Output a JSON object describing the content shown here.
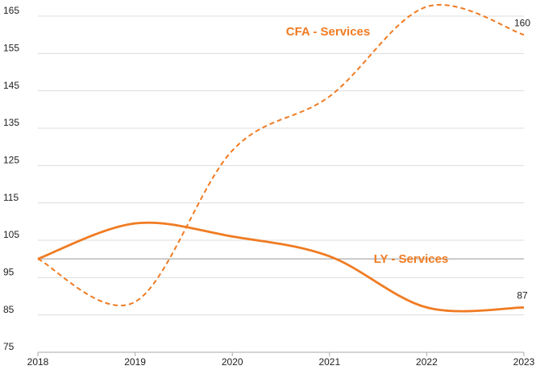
{
  "chart_data": {
    "type": "line",
    "x": [
      2018,
      2019,
      2020,
      2021,
      2022,
      2023
    ],
    "series": [
      {
        "name": "CFA - Services",
        "color": "#f07b22",
        "dashed": true,
        "values": [
          100,
          88.5,
          129,
          143.5,
          167.5,
          160
        ]
      },
      {
        "name": "LY - Services",
        "color": "#f07b22",
        "dashed": false,
        "values": [
          100,
          109.5,
          106,
          100.7,
          87,
          87
        ]
      }
    ],
    "xlim": [
      2018,
      2023
    ],
    "xticks": [
      2018,
      2019,
      2020,
      2021,
      2022,
      2023
    ],
    "ylim": [
      75,
      165
    ],
    "yticks": [
      75,
      85,
      95,
      105,
      115,
      125,
      135,
      145,
      155,
      165
    ],
    "reference_line": 100,
    "grid": true,
    "end_labels": true,
    "smooth": true
  }
}
